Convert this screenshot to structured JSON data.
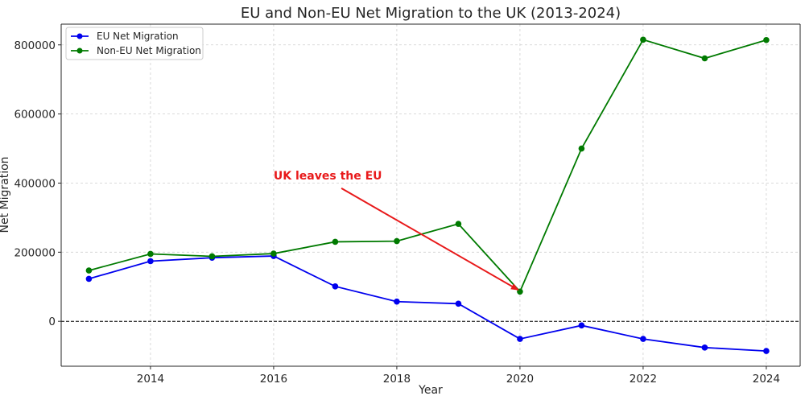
{
  "chart_data": {
    "type": "line",
    "title": "EU and Non-EU Net Migration to the UK (2013-2024)",
    "xlabel": "Year",
    "ylabel": "Net Migration",
    "x": [
      2013,
      2014,
      2015,
      2016,
      2017,
      2018,
      2019,
      2020,
      2021,
      2022,
      2023,
      2024
    ],
    "series": [
      {
        "name": "EU Net Migration",
        "color": "#0000ee",
        "values": [
          123000,
          174000,
          184000,
          189000,
          101000,
          57000,
          51000,
          -51000,
          -12000,
          -51000,
          -76000,
          -86000
        ]
      },
      {
        "name": "Non-EU Net Migration",
        "color": "#007a00",
        "values": [
          147000,
          195000,
          188000,
          196000,
          230000,
          232000,
          282000,
          86000,
          500000,
          815000,
          761000,
          814000
        ]
      }
    ],
    "xlim": [
      2012.55,
      2024.55
    ],
    "ylim": [
      -130000,
      860000
    ],
    "xticks": [
      2014,
      2016,
      2018,
      2020,
      2022,
      2024
    ],
    "xtick_labels": [
      "2014",
      "2016",
      "2018",
      "2020",
      "2022",
      "2024"
    ],
    "yticks": [
      0,
      200000,
      400000,
      600000,
      800000
    ],
    "ytick_labels": [
      "0",
      "200000",
      "400000",
      "600000",
      "800000"
    ],
    "grid": true,
    "reference_line": {
      "y": 0,
      "style": "dashed"
    },
    "legend_position": "top-left",
    "annotation": {
      "text": "UK leaves the EU",
      "color": "#e8191a",
      "text_at": {
        "x": 2016.0,
        "y": 410000
      },
      "arrow_from": {
        "x": 2017.1,
        "y": 385000
      },
      "arrow_to": {
        "x": 2020.0,
        "y": 86000
      }
    }
  }
}
